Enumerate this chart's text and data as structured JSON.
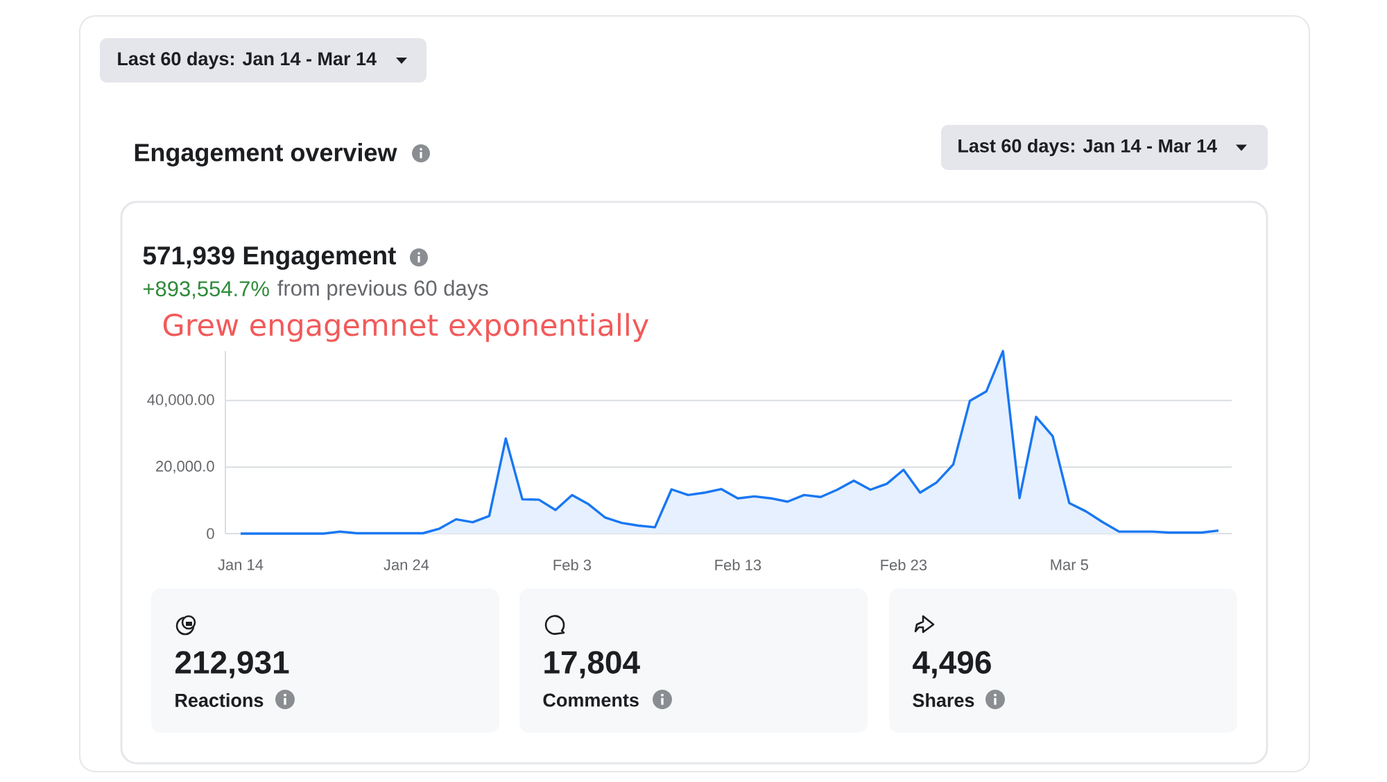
{
  "chart_data": {
    "type": "area",
    "title": "Engagement overview",
    "subtitle": "571,939 Engagement",
    "annotations": [
      "Last 60 days: Jan 14 - Mar 14",
      "Last 60 days: Jan 14 - Mar 14",
      "+893,554.7%",
      "from previous 60 days",
      "Grew engagemnet exponentially",
      "212,931",
      "Reactions",
      "17,804",
      "Comments",
      "4,496",
      "Shares"
    ],
    "categories": [
      "Jan 14",
      null,
      null,
      null,
      null,
      null,
      null,
      null,
      null,
      null,
      "Jan 24",
      null,
      null,
      null,
      null,
      null,
      null,
      null,
      null,
      null,
      "Feb 3",
      null,
      null,
      null,
      null,
      null,
      null,
      null,
      null,
      null,
      "Feb 13",
      null,
      null,
      null,
      null,
      null,
      null,
      null,
      null,
      null,
      "Feb 23",
      null,
      null,
      null,
      null,
      null,
      null,
      null,
      null,
      null,
      "Mar 5",
      null,
      null,
      null,
      null,
      null,
      null,
      null,
      null,
      null
    ],
    "values": [
      0,
      0,
      0,
      0,
      0,
      0,
      600,
      100,
      100,
      100,
      100,
      100,
      1500,
      4300,
      3400,
      5300,
      28600,
      10300,
      10200,
      7100,
      11600,
      8800,
      4800,
      3200,
      2400,
      1900,
      13300,
      11600,
      12300,
      13400,
      10600,
      11200,
      10600,
      9600,
      11600,
      11000,
      13200,
      15900,
      13200,
      15000,
      19200,
      12300,
      15400,
      20800,
      39900,
      42800,
      54900,
      10700,
      35100,
      29300,
      9200,
      6700,
      3500,
      600,
      600,
      600,
      300,
      300,
      300,
      900
    ],
    "color": "#1877f2",
    "ylim": [
      0,
      54900
    ],
    "yticks": [
      0,
      {
        "value": 20000,
        "label": "20,000.0"
      },
      {
        "value": 40000,
        "label": "40,000.00"
      }
    ],
    "grid": "y"
  }
}
